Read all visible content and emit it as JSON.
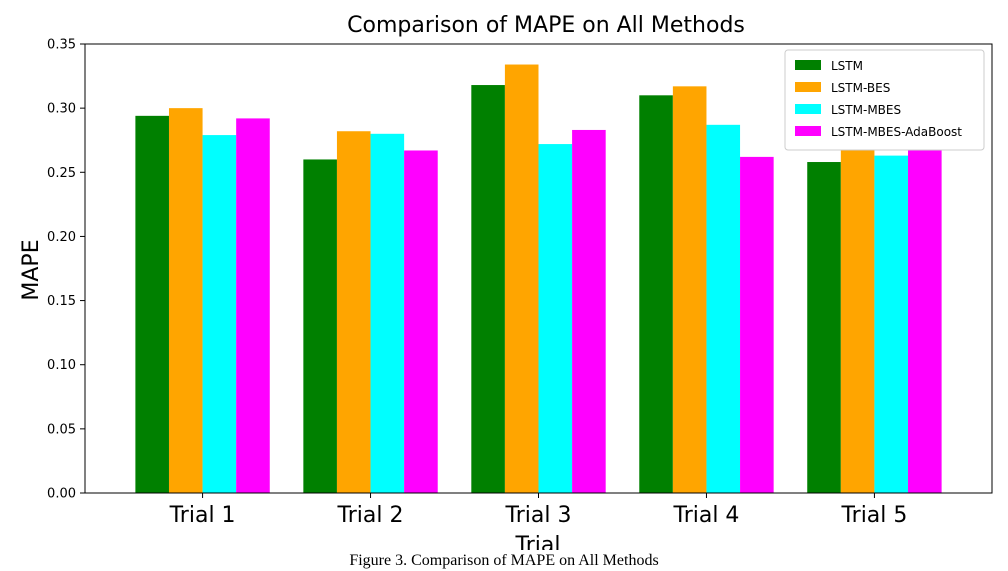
{
  "chart_data": {
    "type": "bar",
    "title": "Comparison of MAPE on All Methods",
    "xlabel": "Trial",
    "ylabel": "MAPE",
    "categories": [
      "Trial 1",
      "Trial 2",
      "Trial 3",
      "Trial 4",
      "Trial 5"
    ],
    "series": [
      {
        "name": "LSTM",
        "color": "#008000",
        "values": [
          0.294,
          0.26,
          0.318,
          0.31,
          0.258
        ]
      },
      {
        "name": "LSTM-BES",
        "color": "#ffa500",
        "values": [
          0.3,
          0.282,
          0.334,
          0.317,
          0.267
        ]
      },
      {
        "name": "LSTM-MBES",
        "color": "#00ffff",
        "values": [
          0.279,
          0.28,
          0.272,
          0.287,
          0.263
        ]
      },
      {
        "name": "LSTM-MBES-AdaBoost",
        "color": "#ff00ff",
        "values": [
          0.292,
          0.267,
          0.283,
          0.262,
          0.27
        ]
      }
    ],
    "ylim": [
      0,
      0.35
    ],
    "yticks": [
      "0.00",
      "0.05",
      "0.10",
      "0.15",
      "0.20",
      "0.25",
      "0.30",
      "0.35"
    ],
    "grid": false,
    "legend_position": "top-right"
  },
  "caption": "Figure 3. Comparison of MAPE on All Methods"
}
